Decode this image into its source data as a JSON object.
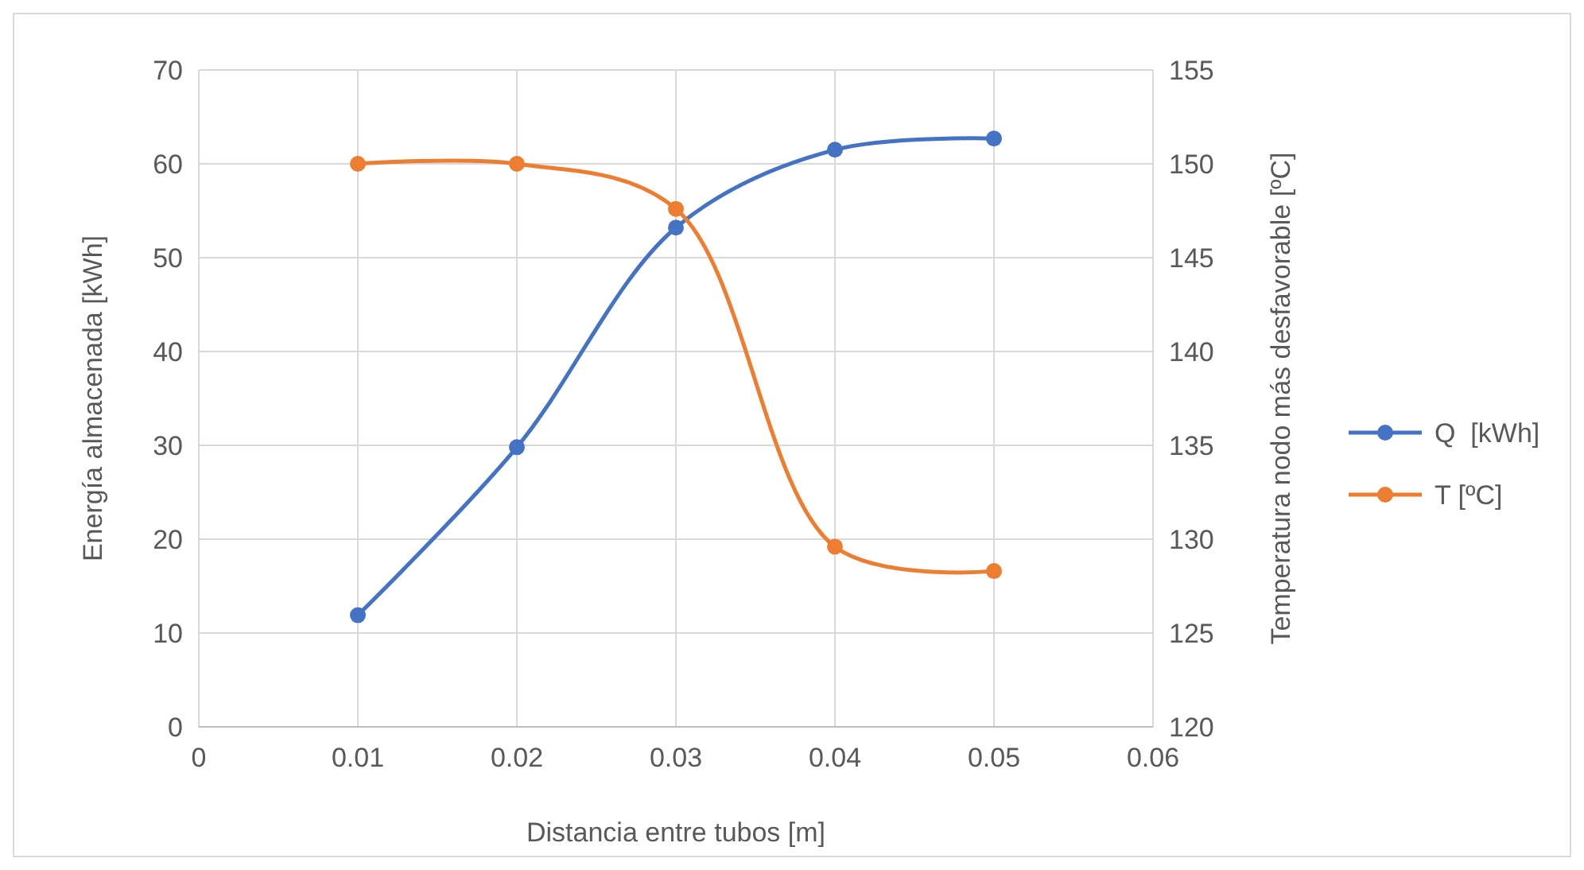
{
  "chart_data": {
    "type": "line",
    "xlabel": "Distancia entre tubos [m]",
    "ylabel": "Energía almacenada [kWh]",
    "y2label": "Temperatura nodo más desfavorable [ºC]",
    "x": [
      0.01,
      0.02,
      0.03,
      0.04,
      0.05
    ],
    "xlim": [
      0,
      0.06
    ],
    "xticks": [
      {
        "value": 0,
        "label": "0"
      },
      0.01,
      0.02,
      0.03,
      0.04,
      0.05,
      0.06
    ],
    "ylim": [
      0,
      70
    ],
    "yticks": [
      0,
      10,
      20,
      30,
      40,
      50,
      60,
      70
    ],
    "y2lim": [
      120,
      155
    ],
    "y2ticks": [
      120,
      125,
      130,
      135,
      140,
      145,
      150,
      155
    ],
    "series": [
      {
        "name": "Q  [kWh]",
        "color": "#4472c4",
        "values": [
          11.9,
          29.8,
          53.2,
          61.5,
          62.7
        ]
      },
      {
        "name": "T [ºC]",
        "color": "#ed7d31",
        "axis": "y2",
        "values": [
          150,
          150,
          147.6,
          129.6,
          128.3
        ]
      }
    ],
    "grid": true,
    "legend": "right",
    "marker": "circle",
    "line_style": "solid"
  }
}
